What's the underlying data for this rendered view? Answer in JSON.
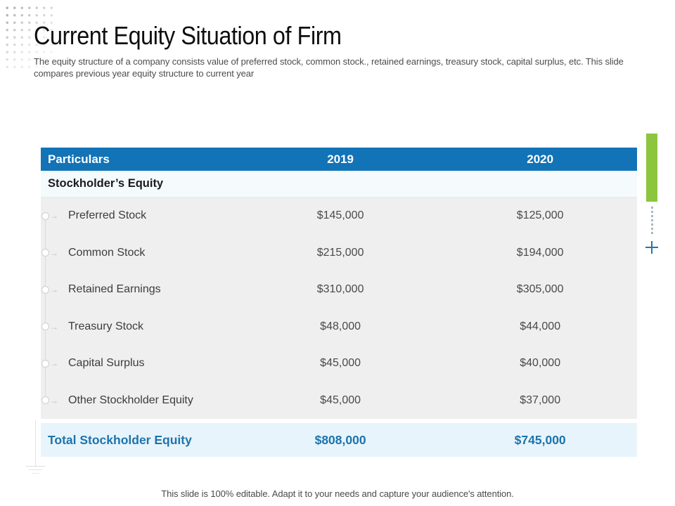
{
  "title": "Current Equity Situation of Firm",
  "subtitle": "The equity structure of a company consists value of preferred stock, common stock., retained earnings, treasury stock, capital surplus, etc. This slide compares previous year equity structure to current year",
  "table": {
    "headers": [
      "Particulars",
      "2019",
      "2020"
    ],
    "section_label": "Stockholder’s Equity",
    "rows": [
      {
        "label": "Preferred Stock",
        "y2019": "$145,000",
        "y2020": "$125,000"
      },
      {
        "label": "Common Stock",
        "y2019": "$215,000",
        "y2020": "$194,000"
      },
      {
        "label": "Retained Earnings",
        "y2019": "$310,000",
        "y2020": "$305,000"
      },
      {
        "label": "Treasury Stock",
        "y2019": "$48,000",
        "y2020": "$44,000"
      },
      {
        "label": "Capital Surplus",
        "y2019": "$45,000",
        "y2020": "$40,000"
      },
      {
        "label": "Other Stockholder Equity",
        "y2019": "$45,000",
        "y2020": "$37,000"
      }
    ],
    "total": {
      "label": "Total Stockholder Equity",
      "y2019": "$808,000",
      "y2020": "$745,000"
    }
  },
  "footer": "This slide is 100% editable. Adapt it to your needs and capture your audience's attention.",
  "icons": {
    "row_arrow": "→"
  },
  "colors": {
    "header_blue": "#1273b7",
    "total_blue": "#1c74ad",
    "accent_green": "#8cc63e",
    "body_gray": "#efefef",
    "total_row_bg": "#e8f4fb",
    "section_row_bg": "#f5fafd"
  }
}
